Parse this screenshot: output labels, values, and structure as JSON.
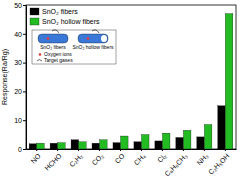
{
  "chart_data": {
    "type": "bar",
    "y_label": "Response(Ra/Rg)",
    "categories": [
      "NO",
      "HCHO",
      "C₂H₂",
      "CO₂",
      "CO",
      "CH₄",
      "Cl₂",
      "C₆H₅CH₃",
      "NH₃",
      "C₂H₅OH"
    ],
    "series": [
      {
        "name": "SnO₂ fibers",
        "color": "#000000",
        "values": [
          1.8,
          2.0,
          3.2,
          2.0,
          2.2,
          2.5,
          2.8,
          4.0,
          4.2,
          15
        ]
      },
      {
        "name": "SnO₂ hollow fibers",
        "color": "#22bb22",
        "values": [
          2.0,
          2.2,
          2.5,
          3.2,
          4.5,
          5.0,
          5.5,
          6.5,
          8.5,
          47
        ]
      }
    ],
    "ylim": [
      0,
      50
    ],
    "yticks": [
      0,
      10,
      20,
      30,
      40,
      50
    ],
    "legend": "top-left",
    "annotations": [
      "SnO₂ fibers",
      "SnO₂ hollow fibers",
      "Oxygen ions",
      "Target gases"
    ]
  }
}
